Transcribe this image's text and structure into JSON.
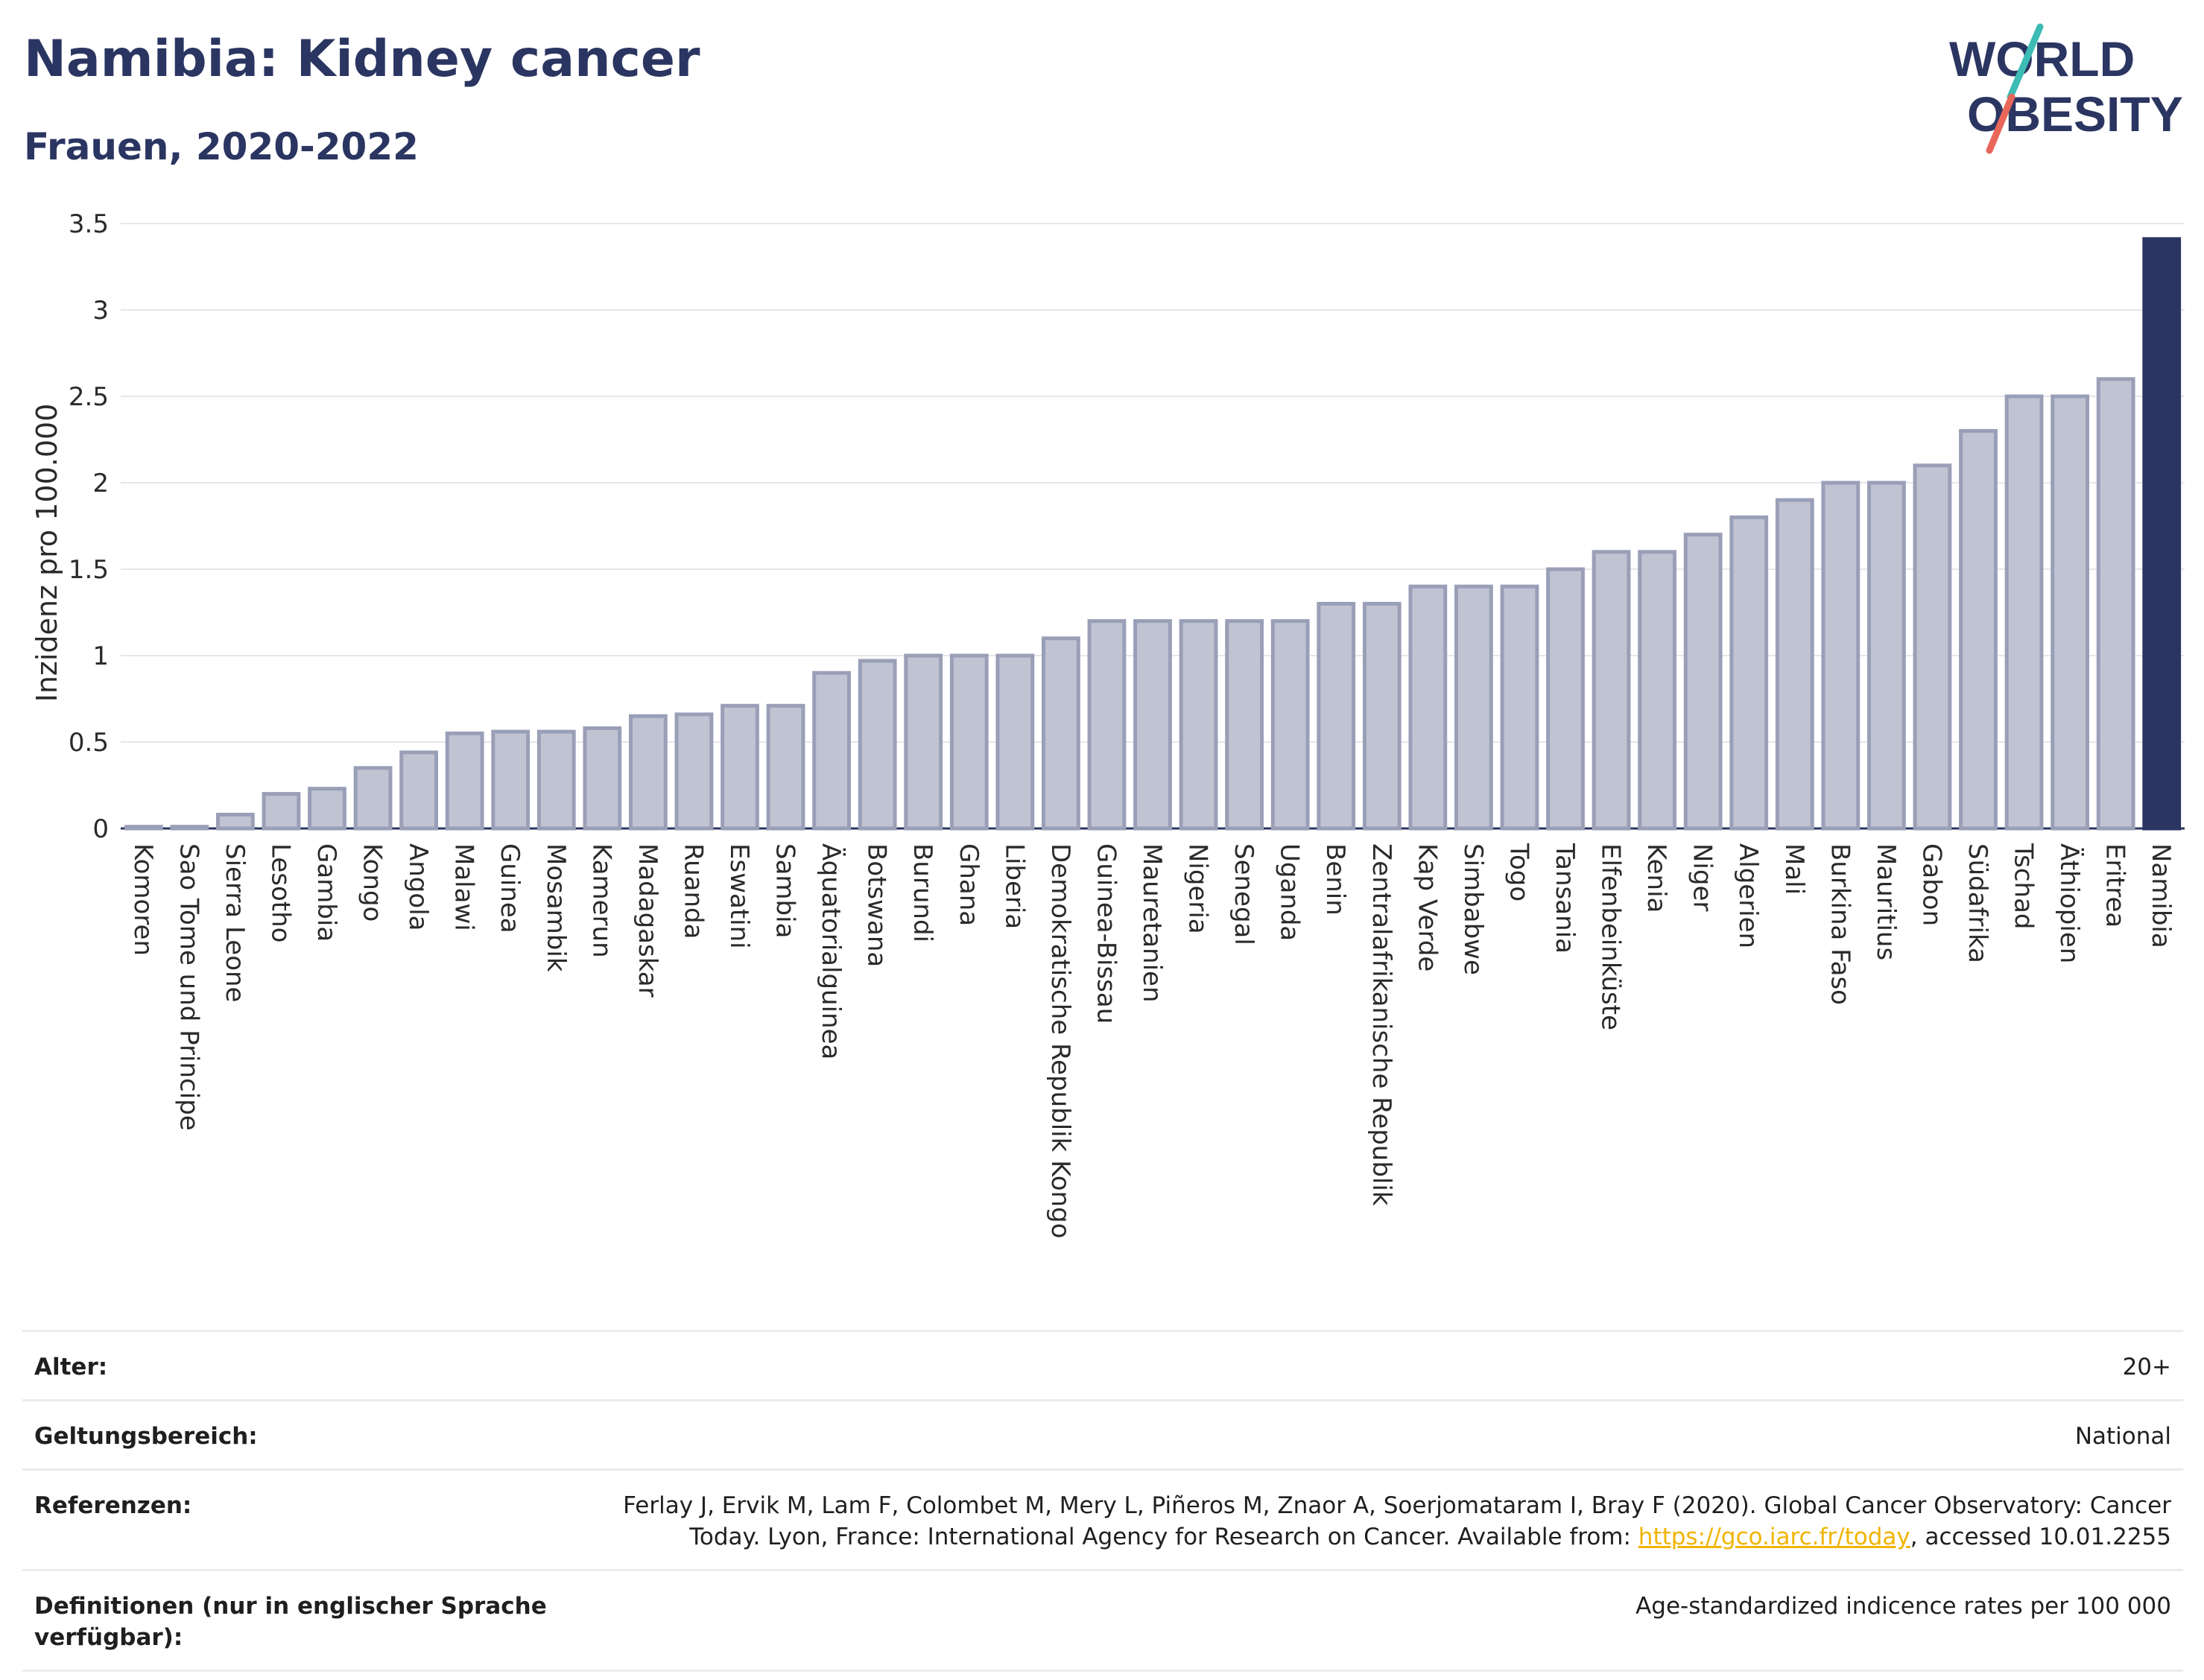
{
  "header": {
    "title": "Namibia: Kidney cancer",
    "subtitle": "Frauen, 2020-2022"
  },
  "logo": {
    "line1": "WORLD",
    "line2": "OBESITY",
    "colors": {
      "text": "#2b3561",
      "slash_top": "#3cbcb4",
      "slash_bottom": "#e8665a"
    }
  },
  "chart_data": {
    "type": "bar",
    "ylabel": "Inzidenz pro 100.000",
    "xlabel": "",
    "ylim": [
      0,
      3.5
    ],
    "yticks": [
      0,
      0.5,
      1,
      1.5,
      2,
      2.5,
      3,
      3.5
    ],
    "ytick_labels": [
      "0",
      "0.5",
      "1",
      "1.5",
      "2",
      "2.5",
      "3",
      "3.5"
    ],
    "grid": true,
    "highlight_category": "Namibia",
    "colors": {
      "bar": "#c0c3d1",
      "bar_edge": "#9a9fb8",
      "highlight": "#2b3561",
      "grid": "#e6e6ec"
    },
    "categories": [
      "Komoren",
      "Sao Tome und Principe",
      "Sierra Leone",
      "Lesotho",
      "Gambia",
      "Kongo",
      "Angola",
      "Malawi",
      "Guinea",
      "Mosambik",
      "Kamerun",
      "Madagaskar",
      "Ruanda",
      "Eswatini",
      "Sambia",
      "Äquatorialguinea",
      "Botswana",
      "Burundi",
      "Ghana",
      "Liberia",
      "Demokratische Republik Kongo",
      "Guinea-Bissau",
      "Mauretanien",
      "Nigeria",
      "Senegal",
      "Uganda",
      "Benin",
      "Zentralafrikanische Republik",
      "Kap Verde",
      "Simbabwe",
      "Togo",
      "Tansania",
      "Elfenbeinküste",
      "Kenia",
      "Niger",
      "Algerien",
      "Mali",
      "Burkina Faso",
      "Mauritius",
      "Gabon",
      "Südafrika",
      "Tschad",
      "Äthiopien",
      "Eritrea",
      "Namibia"
    ],
    "values": [
      0.01,
      0.01,
      0.08,
      0.2,
      0.23,
      0.35,
      0.44,
      0.55,
      0.56,
      0.56,
      0.58,
      0.65,
      0.66,
      0.71,
      0.71,
      0.9,
      0.97,
      1.0,
      1.0,
      1.0,
      1.1,
      1.2,
      1.2,
      1.2,
      1.2,
      1.2,
      1.3,
      1.3,
      1.4,
      1.4,
      1.4,
      1.5,
      1.6,
      1.6,
      1.7,
      1.8,
      1.9,
      2.0,
      2.0,
      2.1,
      2.3,
      2.5,
      2.5,
      2.6,
      3.41
    ]
  },
  "info": {
    "age_label": "Alter:",
    "age_value": "20+",
    "scope_label": "Geltungsbereich:",
    "scope_value": "National",
    "refs_label": "Referenzen:",
    "refs_text_1": "Ferlay J, Ervik M, Lam F, Colombet M, Mery L, Piñeros M, Znaor A, Soerjomataram I, Bray F (2020). Global Cancer Observatory: Cancer Today. Lyon, France: International Agency for Research on Cancer. Available from: ",
    "refs_link": "https://gco.iarc.fr/today",
    "refs_text_2": ", accessed 10.01.2255",
    "defs_label": "Definitionen (nur in englischer Sprache verfügbar):",
    "defs_value": "Age-standardized indicence rates per 100 000"
  }
}
